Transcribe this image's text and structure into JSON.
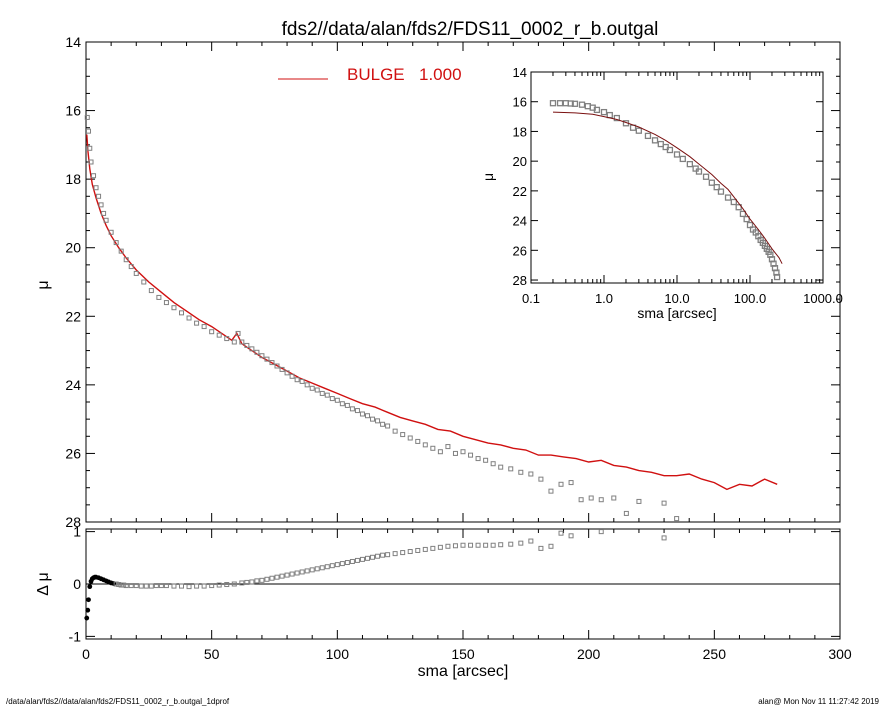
{
  "page": {
    "title": "fds2//data/alan/fds2/FDS11_0002_r_b.outgal",
    "footer_left": "/data/alan/fds2//data/alan/fds2/FDS11_0002_r_b.outgal_1dprof",
    "footer_right": "alan@  Mon Nov 11 11:27:42 2019"
  },
  "colors": {
    "model": "#d01010",
    "data": "#808080",
    "axes": "#000000",
    "inset_model": "#7a1010"
  },
  "chart_data": [
    {
      "type": "scatter",
      "panel": "main",
      "xlabel": "",
      "ylabel": "μ",
      "xlim": [
        0,
        300
      ],
      "ylim": [
        28,
        14
      ],
      "y_inverted": true,
      "x_ticks": [
        0,
        50,
        100,
        150,
        200,
        250,
        300
      ],
      "y_ticks": [
        "14",
        "16",
        "18",
        "20",
        "22",
        "24",
        "26",
        "28"
      ],
      "legend": {
        "entries": [
          {
            "label": "BULGE",
            "value": "1.000"
          }
        ],
        "position": "top-center"
      },
      "model": {
        "x": [
          0.3,
          0.8,
          1.5,
          2.5,
          4,
          6,
          8,
          10,
          13,
          16,
          20,
          25,
          30,
          35,
          40,
          45,
          50,
          55,
          58,
          60,
          62,
          65,
          70,
          75,
          80,
          85,
          90,
          95,
          100,
          105,
          110,
          115,
          120,
          125,
          130,
          135,
          140,
          145,
          150,
          155,
          160,
          165,
          170,
          175,
          180,
          185,
          190,
          195,
          200,
          205,
          210,
          215,
          220,
          225,
          230,
          235,
          240,
          245,
          250,
          255,
          260,
          265,
          270,
          275
        ],
        "y": [
          16.7,
          17.2,
          17.7,
          18.15,
          18.55,
          19.0,
          19.35,
          19.65,
          20.0,
          20.3,
          20.65,
          21.0,
          21.3,
          21.6,
          21.85,
          22.1,
          22.3,
          22.55,
          22.7,
          22.5,
          22.8,
          22.95,
          23.2,
          23.4,
          23.6,
          23.8,
          23.95,
          24.1,
          24.25,
          24.4,
          24.55,
          24.65,
          24.8,
          24.95,
          25.05,
          25.15,
          25.3,
          25.35,
          25.5,
          25.6,
          25.7,
          25.75,
          25.85,
          25.9,
          26.05,
          26.05,
          26.1,
          26.15,
          26.25,
          26.2,
          26.35,
          26.4,
          26.5,
          26.55,
          26.65,
          26.65,
          26.6,
          26.75,
          26.85,
          27.05,
          26.9,
          26.95,
          26.75,
          26.9
        ]
      },
      "data": {
        "x": [
          0.5,
          1,
          1.5,
          2,
          3,
          4,
          5,
          6,
          7,
          8,
          10,
          12,
          14,
          16,
          18,
          20,
          23,
          26,
          29,
          32,
          35,
          38,
          41,
          44,
          47,
          50,
          53,
          56,
          59,
          60.5,
          62,
          64,
          66,
          68,
          70,
          72,
          74,
          76,
          78,
          80,
          82,
          84,
          86,
          88,
          90,
          92,
          94,
          96,
          98,
          100,
          102,
          104,
          106,
          108,
          110,
          112,
          114,
          116,
          118,
          120,
          123,
          126,
          129,
          132,
          135,
          138,
          141,
          144,
          147,
          150,
          153,
          156,
          159,
          162,
          165,
          169,
          173,
          177,
          181,
          185,
          189,
          193,
          197,
          201,
          205,
          210,
          215,
          220,
          230,
          235
        ],
        "y": [
          16.2,
          16.6,
          17.1,
          17.5,
          17.9,
          18.25,
          18.5,
          18.75,
          19.0,
          19.2,
          19.55,
          19.85,
          20.1,
          20.35,
          20.55,
          20.75,
          21.0,
          21.25,
          21.45,
          21.6,
          21.75,
          21.9,
          22.05,
          22.2,
          22.3,
          22.45,
          22.55,
          22.65,
          22.75,
          22.5,
          22.75,
          22.85,
          22.95,
          23.05,
          23.15,
          23.25,
          23.35,
          23.45,
          23.55,
          23.65,
          23.75,
          23.85,
          23.9,
          24.0,
          24.1,
          24.15,
          24.25,
          24.3,
          24.4,
          24.45,
          24.55,
          24.6,
          24.7,
          24.75,
          24.85,
          24.9,
          25.0,
          25.05,
          25.15,
          25.2,
          25.35,
          25.45,
          25.55,
          25.65,
          25.75,
          25.85,
          25.95,
          25.8,
          26.0,
          25.95,
          26.05,
          26.15,
          26.2,
          26.3,
          26.4,
          26.45,
          26.55,
          26.6,
          26.75,
          27.1,
          26.9,
          26.85,
          27.35,
          27.3,
          27.35,
          27.3,
          27.75,
          27.4,
          27.45,
          27.9
        ]
      }
    },
    {
      "type": "scatter",
      "panel": "residual",
      "xlabel": "sma [arcsec]",
      "ylabel": "Δ μ",
      "xlim": [
        0,
        300
      ],
      "ylim": [
        -1.05,
        1.05
      ],
      "x_ticks": [
        "0",
        "50",
        "100",
        "150",
        "200",
        "250",
        "300"
      ],
      "y_ticks": [
        "1",
        "0",
        "-1"
      ],
      "zero_line": true,
      "residual": {
        "x": [
          0.3,
          0.7,
          1,
          1.5,
          2,
          2.5,
          3,
          3.5,
          4,
          5,
          6,
          7,
          8,
          9,
          10,
          11,
          12,
          13,
          14,
          15,
          16,
          18,
          20,
          22,
          24,
          26,
          28,
          30,
          32,
          35,
          38,
          41,
          44,
          47,
          50,
          53,
          56,
          59,
          62,
          64,
          66,
          68,
          70,
          72,
          74,
          76,
          78,
          80,
          82,
          84,
          86,
          88,
          90,
          92,
          94,
          96,
          98,
          100,
          102,
          104,
          106,
          108,
          110,
          112,
          114,
          116,
          118,
          120,
          123,
          126,
          129,
          132,
          135,
          138,
          141,
          144,
          147,
          150,
          153,
          156,
          159,
          162,
          165,
          169,
          173,
          177,
          181,
          185,
          189,
          193,
          205,
          230
        ],
        "y": [
          -0.65,
          -0.5,
          -0.3,
          -0.05,
          0.05,
          0.1,
          0.12,
          0.13,
          0.13,
          0.12,
          0.1,
          0.08,
          0.06,
          0.04,
          0.02,
          0.01,
          0.0,
          -0.01,
          -0.02,
          -0.02,
          -0.03,
          -0.03,
          -0.03,
          -0.04,
          -0.04,
          -0.04,
          -0.03,
          -0.03,
          -0.03,
          -0.04,
          -0.04,
          -0.05,
          -0.04,
          -0.04,
          -0.03,
          -0.02,
          -0.01,
          0.0,
          0.02,
          0.03,
          0.04,
          0.06,
          0.07,
          0.09,
          0.11,
          0.13,
          0.15,
          0.17,
          0.19,
          0.21,
          0.23,
          0.25,
          0.27,
          0.29,
          0.31,
          0.33,
          0.35,
          0.37,
          0.39,
          0.41,
          0.43,
          0.45,
          0.47,
          0.49,
          0.51,
          0.53,
          0.55,
          0.56,
          0.58,
          0.6,
          0.62,
          0.64,
          0.66,
          0.68,
          0.7,
          0.72,
          0.73,
          0.74,
          0.74,
          0.74,
          0.74,
          0.74,
          0.75,
          0.76,
          0.78,
          0.82,
          0.68,
          0.72,
          0.97,
          0.92,
          1.0,
          0.88
        ]
      }
    },
    {
      "type": "scatter",
      "panel": "inset",
      "xlabel": "sma [arcsec]",
      "ylabel": "μ",
      "x_scale": "log",
      "xlim": [
        0.1,
        1000
      ],
      "ylim": [
        28.2,
        14
      ],
      "x_ticks": [
        "0.1",
        "1.0",
        "10.0",
        "100.0",
        "1000.0"
      ],
      "y_ticks": [
        "14",
        "16",
        "18",
        "20",
        "22",
        "24",
        "26",
        "28"
      ],
      "model": {
        "x": [
          0.2,
          0.4,
          0.7,
          1,
          1.5,
          2,
          3,
          5,
          7,
          10,
          15,
          20,
          30,
          40,
          50,
          60,
          80,
          100,
          130,
          160,
          200,
          250,
          275
        ],
        "y": [
          16.7,
          16.75,
          16.85,
          17.0,
          17.2,
          17.4,
          17.7,
          18.2,
          18.6,
          19.1,
          19.7,
          20.2,
          20.9,
          21.5,
          21.9,
          22.4,
          23.2,
          23.9,
          24.6,
          25.2,
          25.9,
          26.5,
          26.9
        ]
      },
      "data": {
        "x": [
          0.2,
          0.25,
          0.3,
          0.35,
          0.4,
          0.5,
          0.6,
          0.7,
          0.8,
          1,
          1.2,
          1.5,
          2,
          2.5,
          3,
          4,
          5,
          6,
          7,
          8,
          10,
          12,
          15,
          18,
          20,
          25,
          30,
          35,
          40,
          50,
          60,
          70,
          80,
          90,
          100,
          110,
          120,
          130,
          140,
          150,
          160,
          170,
          180,
          190,
          200,
          210,
          220,
          230,
          235
        ],
        "y": [
          16.1,
          16.1,
          16.1,
          16.12,
          16.14,
          16.2,
          16.3,
          16.4,
          16.55,
          16.7,
          16.9,
          17.1,
          17.45,
          17.75,
          17.95,
          18.3,
          18.6,
          18.85,
          19.05,
          19.25,
          19.55,
          19.85,
          20.2,
          20.5,
          20.7,
          21.05,
          21.45,
          21.75,
          22.05,
          22.45,
          22.75,
          23.1,
          23.55,
          23.9,
          24.3,
          24.6,
          24.8,
          25.05,
          25.3,
          25.5,
          25.7,
          25.9,
          26.1,
          26.3,
          26.6,
          26.9,
          27.2,
          27.5,
          27.8
        ]
      }
    }
  ]
}
